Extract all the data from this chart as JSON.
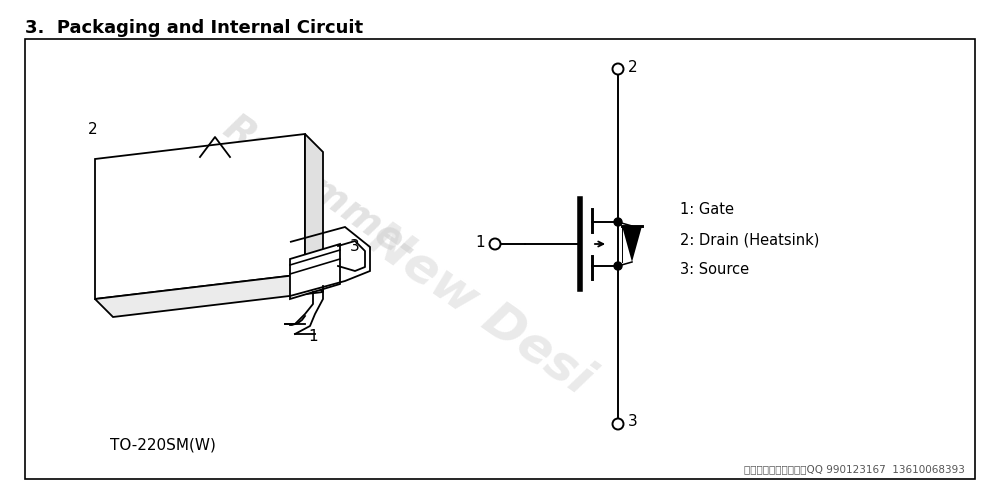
{
  "title": "3.  Packaging and Internal Circuit",
  "title_fontsize": 13,
  "title_fontweight": "bold",
  "bg_color": "#ffffff",
  "border_color": "#000000",
  "text_color": "#000000",
  "label_1": "1: Gate",
  "label_2": "2: Drain (Heatsink)",
  "label_3": "3: Source",
  "package_label": "TO-220SM(W)",
  "footer_text": "东芝代理，大量现货；QQ 990123167  13610068393"
}
